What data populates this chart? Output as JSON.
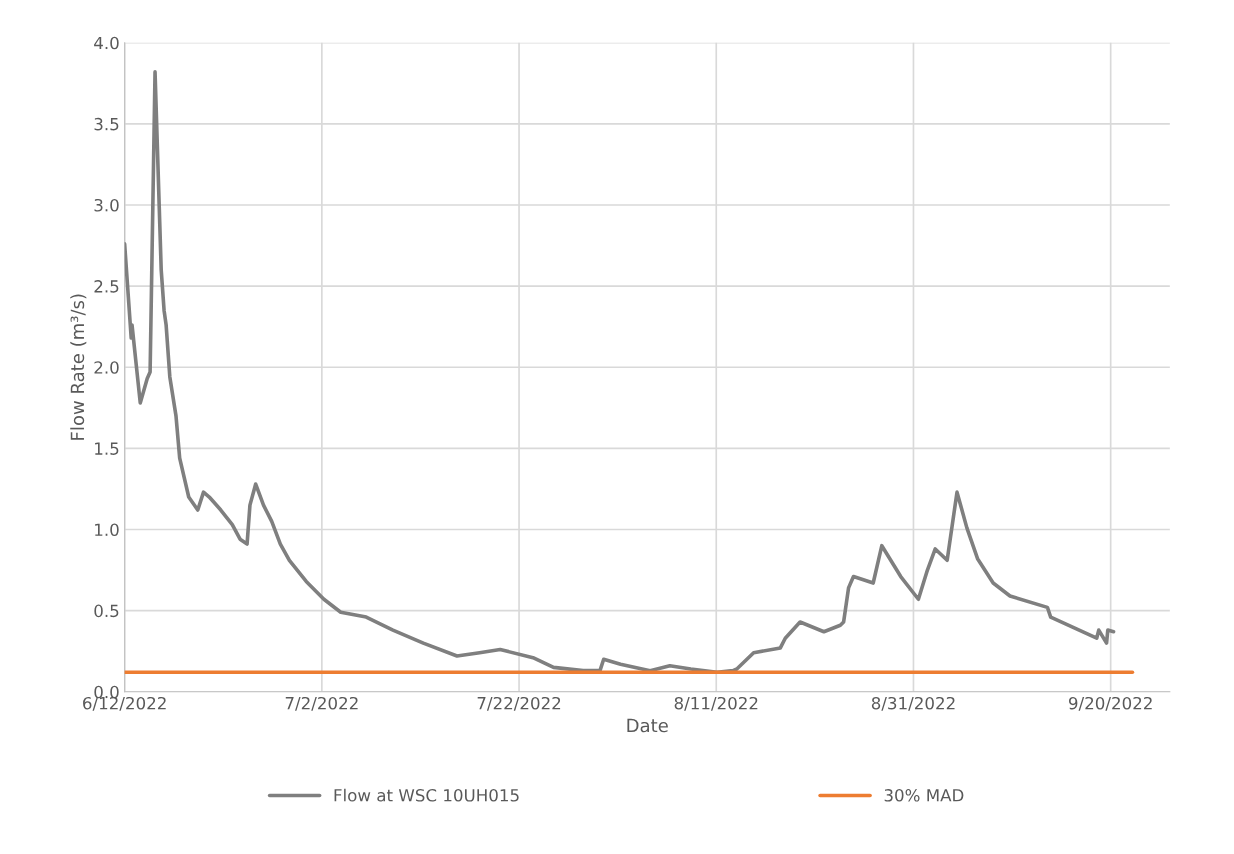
{
  "chart_data": {
    "type": "line",
    "xlabel": "Date",
    "ylabel": "Flow Rate (m³/s)",
    "series": [
      {
        "name": "Flow at WSC 10UH015",
        "color": "#7f7f7f",
        "x": [
          "2022-06-12T00:00",
          "2022-06-12T16:00",
          "2022-06-12T18:00",
          "2022-06-13T14:00",
          "2022-06-14T07:00",
          "2022-06-14T14:00",
          "2022-06-15T02:00",
          "2022-06-15T17:00",
          "2022-06-16T00:00",
          "2022-06-16T05:00",
          "2022-06-16T14:00",
          "2022-06-17T05:00",
          "2022-06-17T14:00",
          "2022-06-18T12:00",
          "2022-06-19T10:00",
          "2022-06-20T00:00",
          "2022-06-20T14:00",
          "2022-06-21T18:00",
          "2022-06-22T22:00",
          "2022-06-23T17:00",
          "2022-06-24T10:00",
          "2022-06-24T17:00",
          "2022-06-25T07:00",
          "2022-06-26T02:00",
          "2022-06-26T22:00",
          "2022-06-27T19:00",
          "2022-06-28T17:00",
          "2022-06-30T10:00",
          "2022-07-02T05:00",
          "2022-07-03T22:00",
          "2022-07-06T12:00",
          "2022-07-09T05:00",
          "2022-07-12T07:00",
          "2022-07-15T17:00",
          "2022-07-18T00:00",
          "2022-07-20T02:00",
          "2022-07-23T10:00",
          "2022-07-25T12:00",
          "2022-07-28T12:00",
          "2022-07-30T05:00",
          "2022-07-30T14:00",
          "2022-08-01T07:00",
          "2022-08-04T07:00",
          "2022-08-06T07:00",
          "2022-08-08T10:00",
          "2022-08-11T02:00",
          "2022-08-12T17:00",
          "2022-08-13T02:00",
          "2022-08-14T19:00",
          "2022-08-17T12:00",
          "2022-08-18T00:00",
          "2022-08-19T12:00",
          "2022-08-21T22:00",
          "2022-08-23T14:00",
          "2022-08-23T22:00",
          "2022-08-24T10:00",
          "2022-08-24T22:00",
          "2022-08-26T22:00",
          "2022-08-27T19:00",
          "2022-08-29T17:00",
          "2022-08-31T12:00",
          "2022-09-01T10:00",
          "2022-09-02T05:00",
          "2022-09-03T10:00",
          "2022-09-04T10:00",
          "2022-09-05T10:00",
          "2022-09-06T12:00",
          "2022-09-08T02:00",
          "2022-09-09T19:00",
          "2022-09-13T14:00",
          "2022-09-13T22:00",
          "2022-09-18T14:00",
          "2022-09-18T19:00",
          "2022-09-19T14:00",
          "2022-09-19T17:00",
          "2022-09-20T07:00"
        ],
        "values": [
          2.76,
          2.18,
          2.26,
          1.78,
          1.93,
          1.97,
          3.82,
          2.6,
          2.35,
          2.26,
          1.94,
          1.7,
          1.44,
          1.2,
          1.12,
          1.23,
          1.2,
          1.12,
          1.03,
          0.94,
          0.91,
          1.15,
          1.28,
          1.15,
          1.05,
          0.91,
          0.81,
          0.68,
          0.57,
          0.49,
          0.46,
          0.38,
          0.3,
          0.22,
          0.24,
          0.26,
          0.21,
          0.15,
          0.13,
          0.13,
          0.2,
          0.17,
          0.13,
          0.16,
          0.14,
          0.12,
          0.13,
          0.14,
          0.24,
          0.27,
          0.33,
          0.43,
          0.37,
          0.41,
          0.43,
          0.64,
          0.71,
          0.67,
          0.9,
          0.71,
          0.57,
          0.75,
          0.88,
          0.81,
          1.23,
          1.01,
          0.82,
          0.67,
          0.59,
          0.52,
          0.46,
          0.33,
          0.38,
          0.3,
          0.38,
          0.37
        ]
      },
      {
        "name": "30% MAD",
        "color": "#ed7d31",
        "x": [
          "2022-06-12T00:00",
          "2022-09-22T05:00"
        ],
        "values": [
          0.12,
          0.12
        ]
      }
    ],
    "xlim": [
      "2022-06-12",
      "2022-09-26"
    ],
    "xticks": [
      {
        "value": "2022-06-12",
        "label": "6/12/2022"
      },
      {
        "value": "2022-07-02",
        "label": "7/2/2022"
      },
      {
        "value": "2022-07-22",
        "label": "7/22/2022"
      },
      {
        "value": "2022-08-11",
        "label": "8/11/2022"
      },
      {
        "value": "2022-08-31",
        "label": "8/31/2022"
      },
      {
        "value": "2022-09-20",
        "label": "9/20/2022"
      }
    ],
    "ylim": [
      0,
      4
    ],
    "yticks": [
      {
        "value": 0,
        "label": "0.0"
      },
      {
        "value": 0.5,
        "label": "0.5"
      },
      {
        "value": 1,
        "label": "1.0"
      },
      {
        "value": 1.5,
        "label": "1.5"
      },
      {
        "value": 2,
        "label": "2.0"
      },
      {
        "value": 2.5,
        "label": "2.5"
      },
      {
        "value": 3,
        "label": "3.0"
      },
      {
        "value": 3.5,
        "label": "3.5"
      },
      {
        "value": 4,
        "label": "4.0"
      }
    ],
    "grid": true,
    "legend": "bottom",
    "marker": "none",
    "line_style": "solid"
  }
}
